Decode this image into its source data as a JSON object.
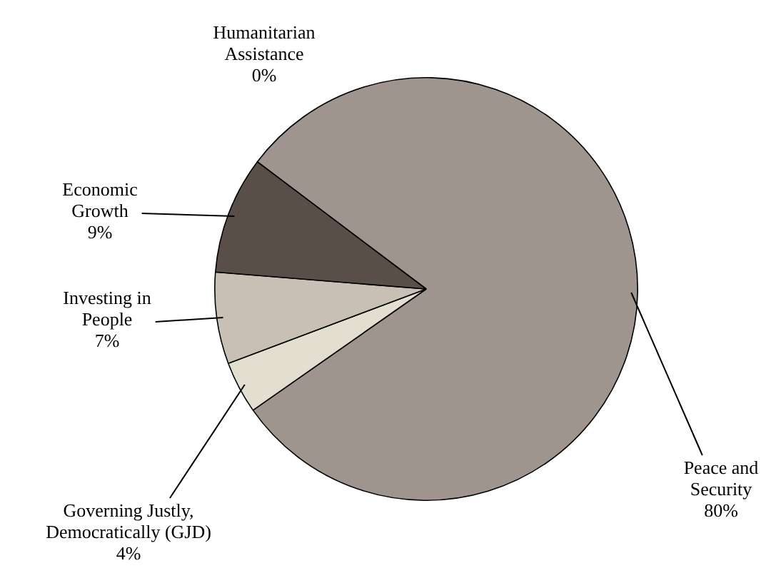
{
  "chart_data": {
    "type": "pie",
    "categories": [
      "Peace and\nSecurity",
      "Governing Justly,\nDemocratically (GJD)",
      "Investing in\nPeople",
      "Economic\nGrowth",
      "Humanitarian\nAssistance"
    ],
    "values": [
      80,
      4,
      7,
      9,
      0
    ],
    "value_labels": [
      "80%",
      "4%",
      "7%",
      "9%",
      "0%"
    ],
    "colors": [
      "#a0958e",
      "#e2dfd0",
      "#c8c0b4",
      "#5a4f48",
      "#8a7f78"
    ],
    "legend": false
  }
}
